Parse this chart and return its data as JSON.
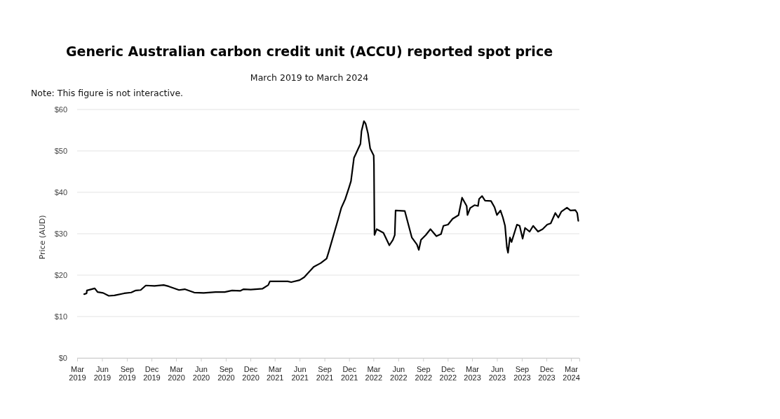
{
  "chart_data": {
    "type": "line",
    "title": "Generic Australian carbon credit unit (ACCU) reported spot price",
    "subtitle": "March 2019 to March 2024",
    "annotations": [
      "Note: This figure is not interactive."
    ],
    "ylabel": "Price (AUD)",
    "x": [
      "2019-03-27",
      "2019-04-05",
      "2019-04-06",
      "2019-05-05",
      "2019-05-16",
      "2019-06-05",
      "2019-06-26",
      "2019-07-17",
      "2019-08-22",
      "2019-09-17",
      "2019-10-04",
      "2019-10-22",
      "2019-11-10",
      "2019-12-12",
      "2020-01-15",
      "2020-02-02",
      "2020-03-12",
      "2020-04-02",
      "2020-05-07",
      "2020-06-11",
      "2020-07-25",
      "2020-08-28",
      "2020-09-24",
      "2020-10-24",
      "2020-11-06",
      "2020-12-02",
      "2021-01-14",
      "2021-02-05",
      "2021-02-11",
      "2021-04-18",
      "2021-05-01",
      "2021-06-01",
      "2021-06-18",
      "2021-07-23",
      "2021-08-18",
      "2021-09-09",
      "2021-09-17",
      "2021-10-22",
      "2021-11-02",
      "2021-11-17",
      "2021-11-30",
      "2021-12-08",
      "2021-12-19",
      "2022-01-12",
      "2022-01-16",
      "2022-01-25",
      "2022-01-31",
      "2022-02-09",
      "2022-02-17",
      "2022-03-02",
      "2022-03-03",
      "2022-03-05",
      "2022-03-13",
      "2022-04-07",
      "2022-04-29",
      "2022-05-12",
      "2022-05-19",
      "2022-05-22",
      "2022-06-25",
      "2022-07-21",
      "2022-08-09",
      "2022-08-16",
      "2022-08-24",
      "2022-09-11",
      "2022-09-28",
      "2022-10-20",
      "2022-11-06",
      "2022-11-15",
      "2022-12-02",
      "2022-12-19",
      "2023-01-10",
      "2023-01-23",
      "2023-02-09",
      "2023-02-12",
      "2023-02-22",
      "2023-03-10",
      "2023-03-23",
      "2023-03-27",
      "2023-04-07",
      "2023-04-18",
      "2023-05-10",
      "2023-05-23",
      "2023-06-01",
      "2023-06-14",
      "2023-06-23",
      "2023-07-01",
      "2023-07-08",
      "2023-07-12",
      "2023-07-19",
      "2023-07-25",
      "2023-08-14",
      "2023-08-24",
      "2023-09-04",
      "2023-09-13",
      "2023-09-30",
      "2023-10-13",
      "2023-10-31",
      "2023-11-17",
      "2023-12-04",
      "2023-12-17",
      "2024-01-03",
      "2024-01-14",
      "2024-01-25",
      "2024-02-15",
      "2024-02-28",
      "2024-03-17",
      "2024-03-24",
      "2024-03-28"
    ],
    "series": [
      {
        "color": "#000000",
        "values": [
          15.4,
          15.6,
          16.3,
          16.8,
          15.9,
          15.7,
          15.0,
          15.1,
          15.6,
          15.8,
          16.3,
          16.4,
          17.5,
          17.4,
          17.6,
          17.3,
          16.4,
          16.6,
          15.8,
          15.7,
          15.9,
          15.9,
          16.3,
          16.2,
          16.6,
          16.5,
          16.7,
          17.6,
          18.5,
          18.5,
          18.3,
          18.8,
          19.5,
          22.0,
          22.9,
          24.0,
          25.7,
          33.6,
          36.2,
          38.4,
          41.0,
          42.7,
          48.3,
          51.7,
          54.8,
          57.2,
          56.6,
          54.2,
          50.6,
          48.9,
          46.9,
          29.7,
          31.1,
          30.2,
          27.2,
          28.5,
          29.7,
          35.6,
          35.5,
          29.1,
          27.4,
          26.1,
          28.5,
          29.7,
          31.1,
          29.4,
          29.9,
          31.9,
          32.2,
          33.6,
          34.5,
          38.7,
          36.7,
          34.5,
          36.2,
          36.9,
          36.7,
          38.4,
          39.1,
          38.0,
          37.9,
          36.4,
          34.5,
          35.6,
          33.9,
          31.9,
          26.6,
          25.4,
          29.1,
          28.0,
          32.2,
          31.9,
          28.8,
          31.4,
          30.5,
          31.9,
          30.5,
          31.1,
          32.2,
          32.5,
          35.0,
          33.9,
          35.3,
          36.3,
          35.6,
          35.7,
          35.0,
          33.1
        ]
      }
    ],
    "xlim": [
      "2019-03-01",
      "2024-04-01"
    ],
    "xticks": [
      {
        "value": "2019-03-01",
        "label": "Mar 2019"
      },
      {
        "value": "2019-06-01",
        "label": "Jun 2019"
      },
      {
        "value": "2019-09-01",
        "label": "Sep 2019"
      },
      {
        "value": "2019-12-01",
        "label": "Dec 2019"
      },
      {
        "value": "2020-03-01",
        "label": "Mar 2020"
      },
      {
        "value": "2020-06-01",
        "label": "Jun 2020"
      },
      {
        "value": "2020-09-01",
        "label": "Sep 2020"
      },
      {
        "value": "2020-12-01",
        "label": "Dec 2020"
      },
      {
        "value": "2021-03-01",
        "label": "Mar 2021"
      },
      {
        "value": "2021-06-01",
        "label": "Jun 2021"
      },
      {
        "value": "2021-09-01",
        "label": "Sep 2021"
      },
      {
        "value": "2021-12-01",
        "label": "Dec 2021"
      },
      {
        "value": "2022-03-01",
        "label": "Mar 2022"
      },
      {
        "value": "2022-06-01",
        "label": "Jun 2022"
      },
      {
        "value": "2022-09-01",
        "label": "Sep 2022"
      },
      {
        "value": "2022-12-01",
        "label": "Dec 2022"
      },
      {
        "value": "2023-03-01",
        "label": "Mar 2023"
      },
      {
        "value": "2023-06-01",
        "label": "Jun 2023"
      },
      {
        "value": "2023-09-01",
        "label": "Sep 2023"
      },
      {
        "value": "2023-12-01",
        "label": "Dec 2023"
      },
      {
        "value": "2024-03-01",
        "label": "Mar 2024"
      }
    ],
    "ylim": [
      0,
      60
    ],
    "yticks": [
      {
        "value": 0,
        "label": "$0"
      },
      {
        "value": 10,
        "label": "$10"
      },
      {
        "value": 20,
        "label": "$20"
      },
      {
        "value": 30,
        "label": "$30"
      },
      {
        "value": 40,
        "label": "$40"
      },
      {
        "value": 50,
        "label": "$50"
      },
      {
        "value": 60,
        "label": "$60"
      }
    ],
    "grid": "y",
    "marker": "none",
    "line_style": "solid"
  }
}
